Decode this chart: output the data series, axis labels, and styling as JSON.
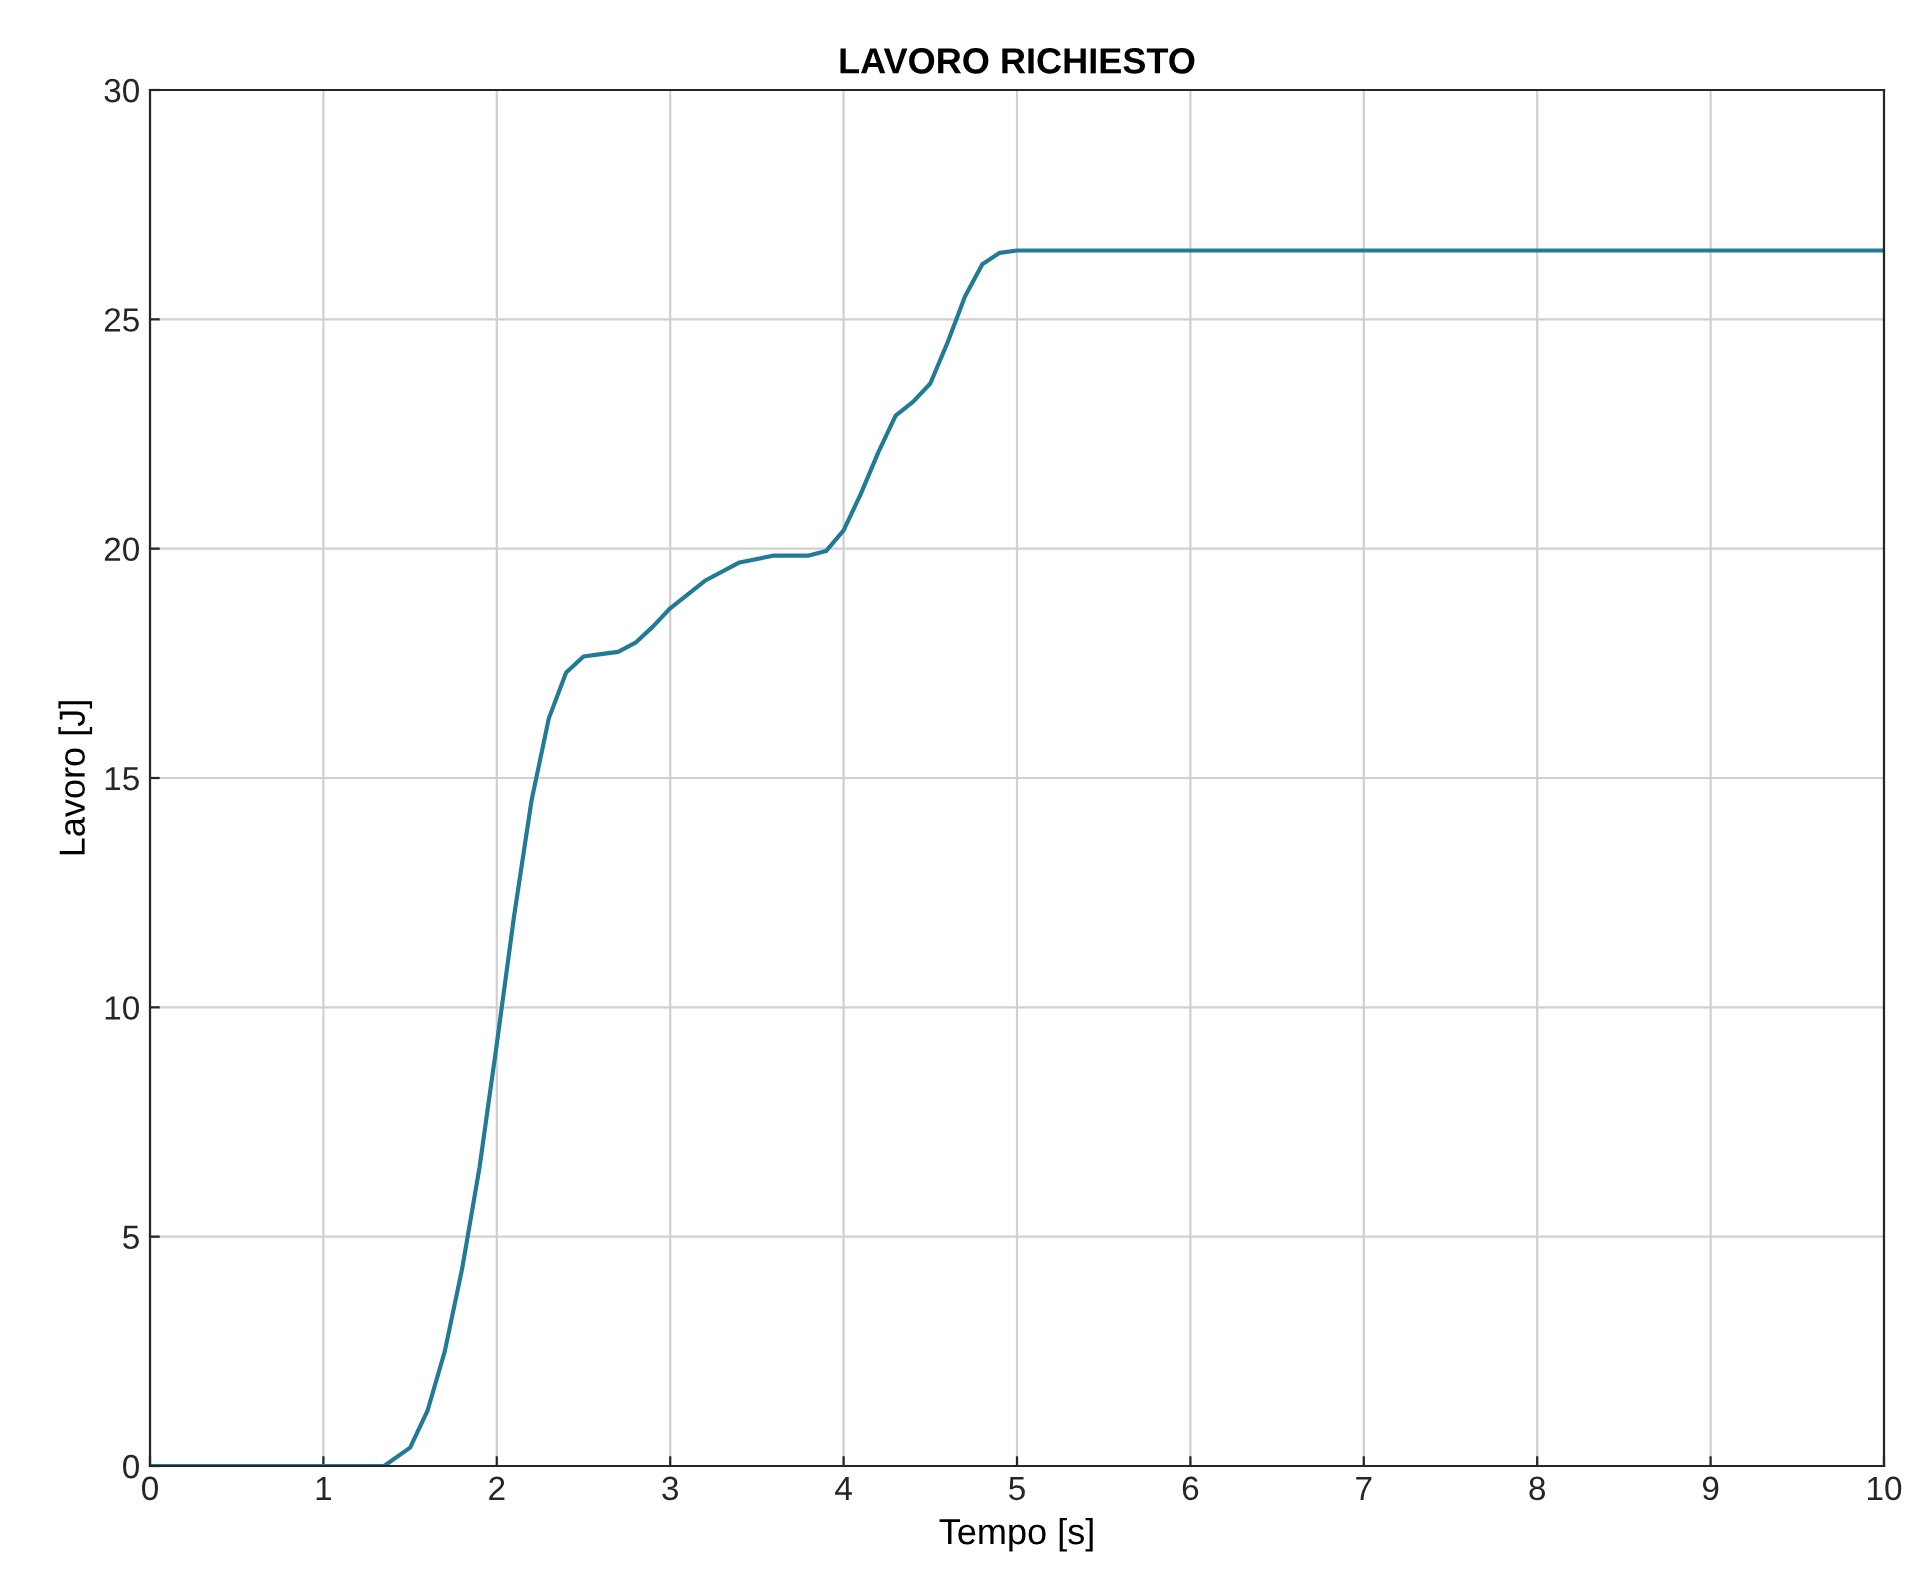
{
  "chart_data": {
    "type": "line",
    "title": "LAVORO RICHIESTO",
    "xlabel": "Tempo [s]",
    "ylabel": "Lavoro [J]",
    "x": [
      0,
      1.35,
      1.5,
      1.6,
      1.7,
      1.8,
      1.9,
      2.0,
      2.1,
      2.2,
      2.3,
      2.4,
      2.5,
      2.6,
      2.7,
      2.8,
      2.9,
      3.0,
      3.2,
      3.4,
      3.6,
      3.8,
      3.9,
      4.0,
      4.1,
      4.2,
      4.3,
      4.4,
      4.5,
      4.6,
      4.7,
      4.8,
      4.9,
      5.0,
      10
    ],
    "series": [
      {
        "color": "#217a96",
        "values": [
          0,
          0,
          0.4,
          1.2,
          2.5,
          4.3,
          6.5,
          9.2,
          12.0,
          14.5,
          16.3,
          17.3,
          17.65,
          17.7,
          17.75,
          17.95,
          18.3,
          18.7,
          19.3,
          19.7,
          19.85,
          19.85,
          19.95,
          20.4,
          21.2,
          22.1,
          22.9,
          23.2,
          23.6,
          24.5,
          25.5,
          26.2,
          26.45,
          26.5,
          26.5
        ]
      }
    ],
    "xlim": [
      0,
      10
    ],
    "ylim": [
      0,
      30
    ],
    "xticks": [
      0,
      1,
      2,
      3,
      4,
      5,
      6,
      7,
      8,
      9,
      10
    ],
    "yticks": [
      0,
      5,
      10,
      15,
      20,
      25,
      30
    ],
    "grid": true,
    "legend": false,
    "marker": "none",
    "line_style": "solid"
  }
}
